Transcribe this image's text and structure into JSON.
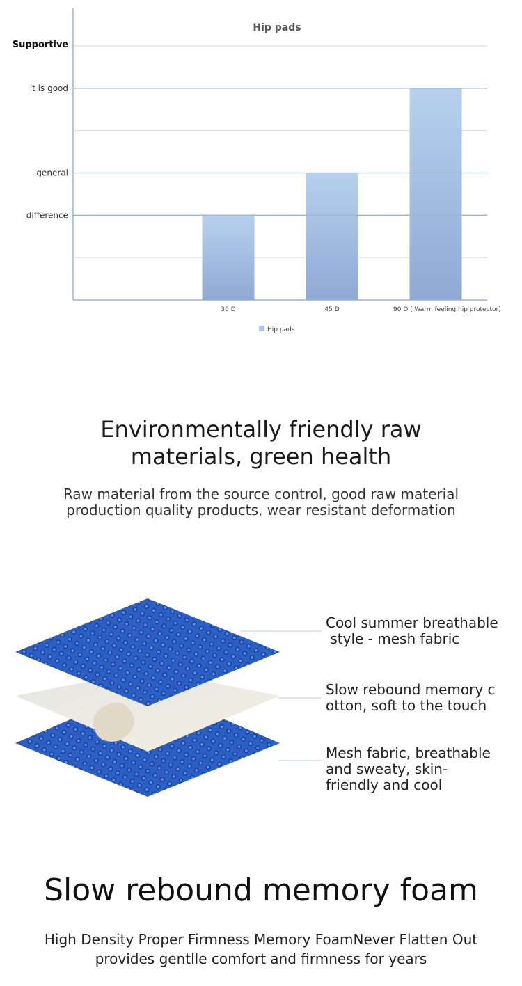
{
  "chart_data": {
    "type": "bar",
    "title": "Hip pads",
    "ylabel": "Supportive",
    "yticks": [
      "difference",
      "general",
      "it is good"
    ],
    "categories": [
      "30 D",
      "45 D",
      "90 D ( Warm feeling hip protector)"
    ],
    "series": [
      {
        "name": "Hip pads",
        "values": [
          2,
          3,
          5
        ]
      }
    ],
    "ylim": [
      0,
      6
    ],
    "grid": true,
    "legend": "bottom",
    "color": "#aec6e6"
  },
  "section1": {
    "title_lines": [
      "Environmentally friendly raw",
      "materials, green health"
    ],
    "subtitle_lines": [
      "Raw material from the source control, good raw material",
      "production quality products, wear resistant deformation"
    ]
  },
  "layers": [
    {
      "lines": [
        "Cool summer breathable",
        " style - mesh fabric"
      ]
    },
    {
      "lines": [
        "Slow rebound memory c",
        "otton, soft to the touch"
      ]
    },
    {
      "lines": [
        "Mesh fabric, breathable",
        "and sweaty, skin-",
        "friendly and cool"
      ]
    }
  ],
  "section2": {
    "title": "Slow rebound memory foam",
    "subtitle_lines": [
      "High Density Proper Firmness Memory FoamNever Flatten Out",
      "provides gentlle comfort and firmness for years"
    ]
  },
  "colors": {
    "mesh": "#2a5fc4",
    "foam": "#efe9da",
    "bar": "#aec6e6"
  }
}
